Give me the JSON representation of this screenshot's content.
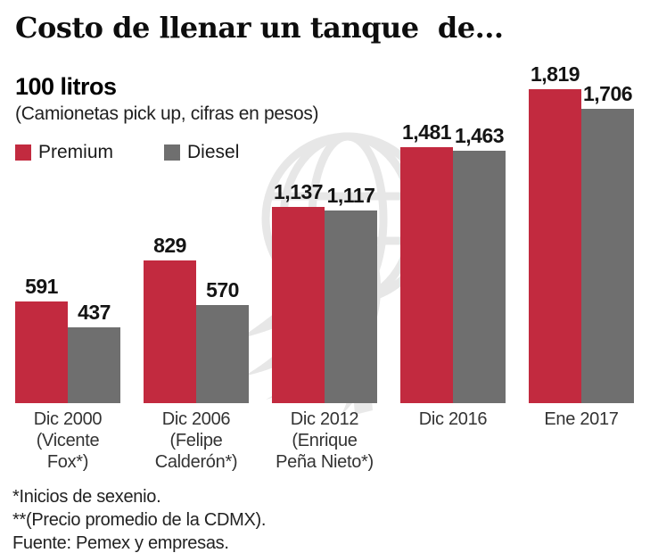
{
  "header": {
    "title": "Costo de llenar un tanque  de...",
    "subtitle": "100 litros",
    "note": "(Camionetas pick up, cifras en pesos)"
  },
  "legend": {
    "items": [
      {
        "label": "Premium",
        "color": "#c22a3f"
      },
      {
        "label": "Diesel",
        "color": "#6f6f6f"
      }
    ]
  },
  "chart_data": {
    "type": "bar",
    "title": "Costo de llenar un tanque de 100 litros",
    "subtitle": "Camionetas pick up, cifras en pesos",
    "unit": "pesos",
    "grid": false,
    "legend_position": "top-left",
    "ylim": [
      0,
      1819
    ],
    "categories": [
      [
        "Dic 2000",
        "(Vicente",
        "Fox*)"
      ],
      [
        "Dic 2006",
        "(Felipe",
        "Calderón*)"
      ],
      [
        "Dic 2012",
        "(Enrique",
        "Peña Nieto*)"
      ],
      [
        "Dic 2016"
      ],
      [
        "Ene 2017"
      ]
    ],
    "series": [
      {
        "name": "Premium",
        "color": "#c22a3f",
        "values": [
          591,
          829,
          1137,
          1481,
          1819
        ]
      },
      {
        "name": "Diesel",
        "color": "#6f6f6f",
        "values": [
          437,
          570,
          1117,
          1463,
          1706
        ]
      }
    ]
  },
  "footnotes": {
    "line1": "*Inicios de sexenio.",
    "line2": "**(Precio promedio de la CDMX).",
    "line3": "Fuente: Pemex y empresas."
  },
  "watermark": {
    "name": "eagle-globe-logo",
    "color": "#eaeaea"
  }
}
